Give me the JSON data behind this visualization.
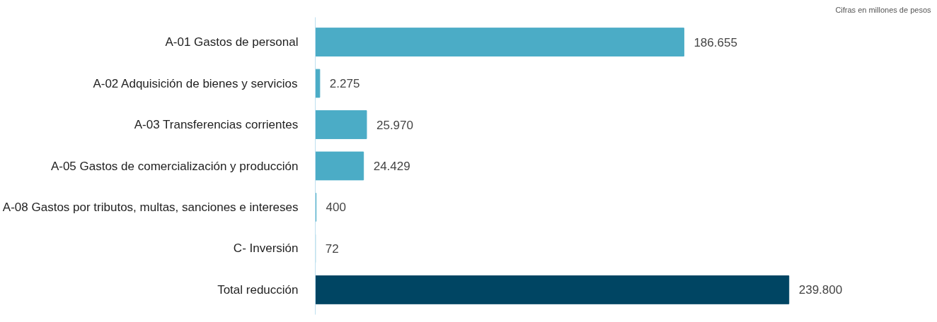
{
  "chart_data": {
    "type": "bar",
    "orientation": "horizontal",
    "categories": [
      "A-01 Gastos de personal",
      "A-02 Adquisición de bienes y servicios",
      "A-03 Transferencias corrientes",
      "A-05 Gastos de comercialización y producción",
      "A-08 Gastos por tributos, multas, sanciones e intereses",
      "C- Inversión",
      "Total reducción"
    ],
    "values": [
      186655,
      2275,
      25970,
      24429,
      400,
      72,
      239800
    ],
    "value_labels": [
      "186.655",
      "2.275",
      "25.970",
      "24.429",
      "400",
      "72",
      "239.800"
    ],
    "colors": [
      "#4bacc6",
      "#4bacc6",
      "#4bacc6",
      "#4bacc6",
      "#4bacc6",
      "#4bacc6",
      "#004563"
    ],
    "annotations": [
      "Cifras en millones de pesos"
    ],
    "grid": false
  }
}
